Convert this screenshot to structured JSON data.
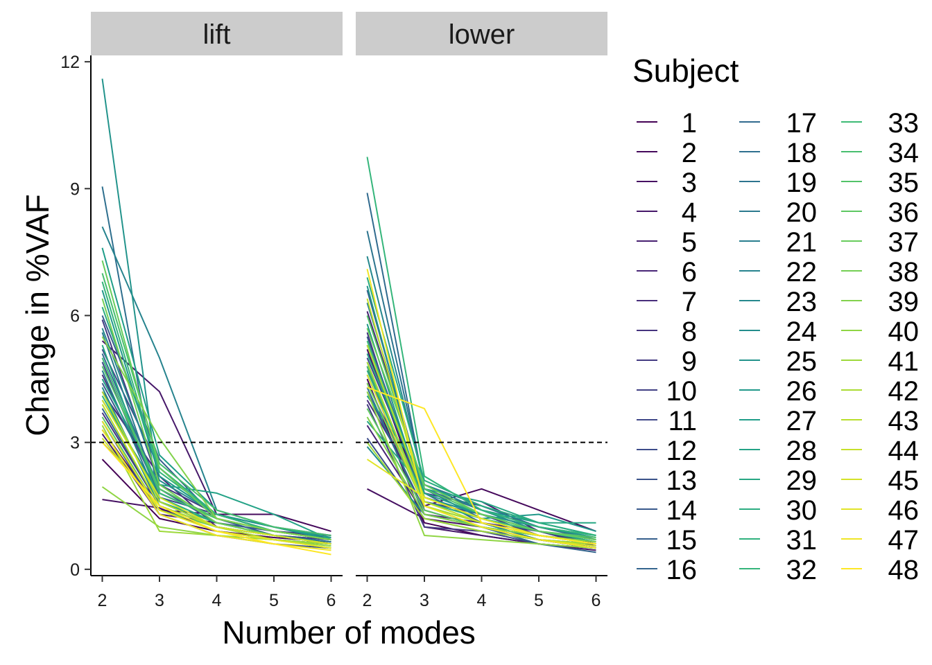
{
  "chart_data": {
    "type": "line",
    "facets": [
      "lift",
      "lower"
    ],
    "xlabel": "Number of modes",
    "ylabel": "Change in %VAF",
    "x": [
      2,
      3,
      4,
      5,
      6
    ],
    "xlim": [
      1.8,
      6.2
    ],
    "ylim": [
      -0.15,
      12.15
    ],
    "yticks": [
      0,
      3,
      6,
      9,
      12
    ],
    "reference_line": {
      "y": 3,
      "style": "dashed",
      "color": "#000000"
    },
    "legend": {
      "title": "Subject",
      "placement": "right",
      "columns": 3
    },
    "palette": "viridis",
    "series": [
      {
        "name": "1",
        "lift": [
          2.6,
          1.2,
          0.9,
          0.75,
          0.65
        ],
        "lower": [
          4.5,
          1.1,
          0.8,
          0.6,
          0.5
        ]
      },
      {
        "name": "2",
        "lift": [
          3.3,
          1.4,
          1.3,
          1.3,
          0.9
        ],
        "lower": [
          5.2,
          1.5,
          1.9,
          1.4,
          0.9
        ]
      },
      {
        "name": "3",
        "lift": [
          1.65,
          1.45,
          0.9,
          0.7,
          0.6
        ],
        "lower": [
          1.9,
          1.2,
          1.0,
          0.7,
          0.5
        ]
      },
      {
        "name": "4",
        "lift": [
          5.4,
          4.2,
          1.3,
          0.9,
          0.7
        ],
        "lower": [
          4.8,
          1.0,
          0.8,
          0.6,
          0.45
        ]
      },
      {
        "name": "5",
        "lift": [
          3.2,
          1.3,
          1.1,
          0.8,
          0.7
        ],
        "lower": [
          6.1,
          1.9,
          1.6,
          0.9,
          0.6
        ]
      },
      {
        "name": "6",
        "lift": [
          4.2,
          2.2,
          1.0,
          0.8,
          0.6
        ],
        "lower": [
          3.4,
          1.3,
          1.1,
          0.9,
          0.55
        ]
      },
      {
        "name": "7",
        "lift": [
          4.6,
          1.8,
          1.2,
          0.9,
          0.75
        ],
        "lower": [
          4.0,
          1.7,
          1.2,
          0.8,
          0.6
        ]
      },
      {
        "name": "8",
        "lift": [
          3.7,
          1.5,
          1.0,
          0.8,
          0.6
        ],
        "lower": [
          5.6,
          1.4,
          1.0,
          0.7,
          0.6
        ]
      },
      {
        "name": "9",
        "lift": [
          5.9,
          2.0,
          1.3,
          0.9,
          0.8
        ],
        "lower": [
          3.9,
          1.0,
          0.9,
          0.7,
          0.5
        ]
      },
      {
        "name": "10",
        "lift": [
          3.0,
          1.6,
          1.1,
          0.8,
          0.7
        ],
        "lower": [
          4.4,
          1.6,
          1.3,
          0.8,
          0.65
        ]
      },
      {
        "name": "11",
        "lift": [
          4.9,
          1.7,
          1.3,
          1.0,
          0.8
        ],
        "lower": [
          5.0,
          1.8,
          1.5,
          1.0,
          0.7
        ]
      },
      {
        "name": "12",
        "lift": [
          5.2,
          2.4,
          1.2,
          0.9,
          0.7
        ],
        "lower": [
          3.1,
          1.2,
          0.9,
          0.6,
          0.5
        ]
      },
      {
        "name": "13",
        "lift": [
          3.5,
          1.3,
          0.8,
          0.6,
          0.5
        ],
        "lower": [
          4.2,
          1.4,
          1.0,
          0.8,
          0.6
        ]
      },
      {
        "name": "14",
        "lift": [
          4.4,
          1.9,
          1.1,
          0.9,
          0.7
        ],
        "lower": [
          5.5,
          1.7,
          1.3,
          0.9,
          0.7
        ]
      },
      {
        "name": "15",
        "lift": [
          6.0,
          2.6,
          1.2,
          0.8,
          0.6
        ],
        "lower": [
          6.6,
          1.8,
          1.1,
          0.7,
          0.55
        ]
      },
      {
        "name": "16",
        "lift": [
          3.8,
          1.5,
          1.0,
          0.8,
          0.65
        ],
        "lower": [
          4.6,
          1.5,
          1.0,
          0.6,
          0.4
        ]
      },
      {
        "name": "17",
        "lift": [
          5.1,
          1.9,
          1.2,
          0.9,
          0.7
        ],
        "lower": [
          8.9,
          1.9,
          1.4,
          1.0,
          0.7
        ]
      },
      {
        "name": "18",
        "lift": [
          9.05,
          1.6,
          1.0,
          0.7,
          0.6
        ],
        "lower": [
          4.3,
          1.3,
          1.0,
          0.7,
          0.5
        ]
      },
      {
        "name": "19",
        "lift": [
          4.0,
          1.8,
          1.2,
          0.9,
          0.7
        ],
        "lower": [
          8.0,
          2.0,
          1.5,
          1.0,
          0.8
        ]
      },
      {
        "name": "20",
        "lift": [
          5.6,
          1.7,
          1.1,
          0.8,
          0.65
        ],
        "lower": [
          5.3,
          1.6,
          1.2,
          0.8,
          0.6
        ]
      },
      {
        "name": "21",
        "lift": [
          4.7,
          1.6,
          1.0,
          0.8,
          0.6
        ],
        "lower": [
          6.3,
          1.9,
          1.2,
          0.8,
          0.6
        ]
      },
      {
        "name": "22",
        "lift": [
          8.1,
          5.0,
          1.4,
          1.0,
          0.7
        ],
        "lower": [
          4.9,
          1.5,
          1.1,
          0.7,
          0.55
        ]
      },
      {
        "name": "23",
        "lift": [
          5.7,
          2.1,
          1.3,
          0.9,
          0.7
        ],
        "lower": [
          7.4,
          2.0,
          1.4,
          0.9,
          0.7
        ]
      },
      {
        "name": "24",
        "lift": [
          4.3,
          1.5,
          1.0,
          0.8,
          0.6
        ],
        "lower": [
          2.9,
          1.3,
          1.0,
          0.8,
          0.6
        ]
      },
      {
        "name": "25",
        "lift": [
          11.6,
          1.8,
          1.2,
          0.9,
          0.7
        ],
        "lower": [
          6.7,
          1.7,
          1.3,
          1.0,
          0.75
        ]
      },
      {
        "name": "26",
        "lift": [
          6.6,
          2.2,
          1.3,
          1.0,
          0.7
        ],
        "lower": [
          5.8,
          1.6,
          1.2,
          1.3,
          0.9
        ]
      },
      {
        "name": "27",
        "lift": [
          7.6,
          2.7,
          1.4,
          1.0,
          0.75
        ],
        "lower": [
          4.1,
          2.2,
          1.4,
          1.1,
          0.8
        ]
      },
      {
        "name": "28",
        "lift": [
          4.5,
          2.0,
          1.8,
          1.3,
          0.7
        ],
        "lower": [
          5.1,
          1.8,
          1.3,
          0.9,
          0.65
        ]
      },
      {
        "name": "29",
        "lift": [
          5.3,
          1.6,
          1.1,
          0.8,
          0.6
        ],
        "lower": [
          3.5,
          1.9,
          1.6,
          1.1,
          1.1
        ]
      },
      {
        "name": "30",
        "lift": [
          6.2,
          2.4,
          1.3,
          0.9,
          0.7
        ],
        "lower": [
          6.9,
          2.1,
          1.5,
          1.1,
          0.8
        ]
      },
      {
        "name": "31",
        "lift": [
          4.1,
          1.7,
          1.1,
          0.8,
          0.6
        ],
        "lower": [
          4.7,
          1.6,
          1.2,
          0.9,
          0.7
        ]
      },
      {
        "name": "32",
        "lift": [
          6.8,
          2.3,
          1.3,
          0.9,
          0.7
        ],
        "lower": [
          9.75,
          2.2,
          1.4,
          1.0,
          0.8
        ]
      },
      {
        "name": "33",
        "lift": [
          5.0,
          1.8,
          1.2,
          0.9,
          0.7
        ],
        "lower": [
          5.4,
          1.7,
          1.2,
          0.9,
          0.7
        ]
      },
      {
        "name": "34",
        "lift": [
          7.0,
          2.5,
          1.4,
          1.0,
          0.8
        ],
        "lower": [
          4.8,
          1.6,
          1.1,
          0.8,
          0.6
        ]
      },
      {
        "name": "35",
        "lift": [
          4.8,
          1.9,
          1.2,
          0.9,
          0.7
        ],
        "lower": [
          6.0,
          1.9,
          1.3,
          0.9,
          0.75
        ]
      },
      {
        "name": "36",
        "lift": [
          3.6,
          1.4,
          1.0,
          0.8,
          0.6
        ],
        "lower": [
          3.8,
          1.4,
          1.0,
          0.8,
          0.6
        ]
      },
      {
        "name": "37",
        "lift": [
          7.3,
          2.4,
          1.2,
          0.9,
          0.7
        ],
        "lower": [
          5.7,
          2.0,
          1.3,
          0.9,
          0.7
        ]
      },
      {
        "name": "38",
        "lift": [
          6.4,
          2.0,
          1.1,
          0.8,
          0.6
        ],
        "lower": [
          4.4,
          1.5,
          1.1,
          0.8,
          0.6
        ]
      },
      {
        "name": "39",
        "lift": [
          5.5,
          3.1,
          1.2,
          0.9,
          0.7
        ],
        "lower": [
          3.6,
          1.3,
          1.0,
          0.8,
          0.65
        ]
      },
      {
        "name": "40",
        "lift": [
          1.95,
          1.0,
          0.8,
          0.7,
          0.55
        ],
        "lower": [
          4.2,
          0.8,
          0.7,
          0.6,
          0.5
        ]
      },
      {
        "name": "41",
        "lift": [
          3.4,
          0.9,
          0.8,
          0.7,
          0.6
        ],
        "lower": [
          3.0,
          1.2,
          0.9,
          0.7,
          0.6
        ]
      },
      {
        "name": "42",
        "lift": [
          4.2,
          1.6,
          1.0,
          0.8,
          0.6
        ],
        "lower": [
          4.9,
          1.5,
          1.1,
          0.8,
          0.6
        ]
      },
      {
        "name": "43",
        "lift": [
          3.9,
          1.5,
          1.0,
          0.7,
          0.5
        ],
        "lower": [
          5.3,
          1.7,
          1.2,
          0.8,
          0.6
        ]
      },
      {
        "name": "44",
        "lift": [
          3.1,
          1.4,
          0.9,
          0.7,
          0.5
        ],
        "lower": [
          6.4,
          1.6,
          1.1,
          0.8,
          0.6
        ]
      },
      {
        "name": "45",
        "lift": [
          4.0,
          1.7,
          1.0,
          0.8,
          0.6
        ],
        "lower": [
          4.6,
          1.5,
          1.0,
          0.7,
          0.55
        ]
      },
      {
        "name": "46",
        "lift": [
          3.5,
          1.4,
          0.9,
          0.7,
          0.5
        ],
        "lower": [
          2.6,
          1.7,
          1.2,
          0.8,
          0.6
        ]
      },
      {
        "name": "47",
        "lift": [
          3.3,
          1.3,
          0.8,
          0.6,
          0.45
        ],
        "lower": [
          7.1,
          1.5,
          1.0,
          0.7,
          0.5
        ]
      },
      {
        "name": "48",
        "lift": [
          3.0,
          1.5,
          0.9,
          0.6,
          0.35
        ],
        "lower": [
          4.3,
          3.8,
          1.1,
          0.8,
          0.6
        ]
      }
    ]
  }
}
